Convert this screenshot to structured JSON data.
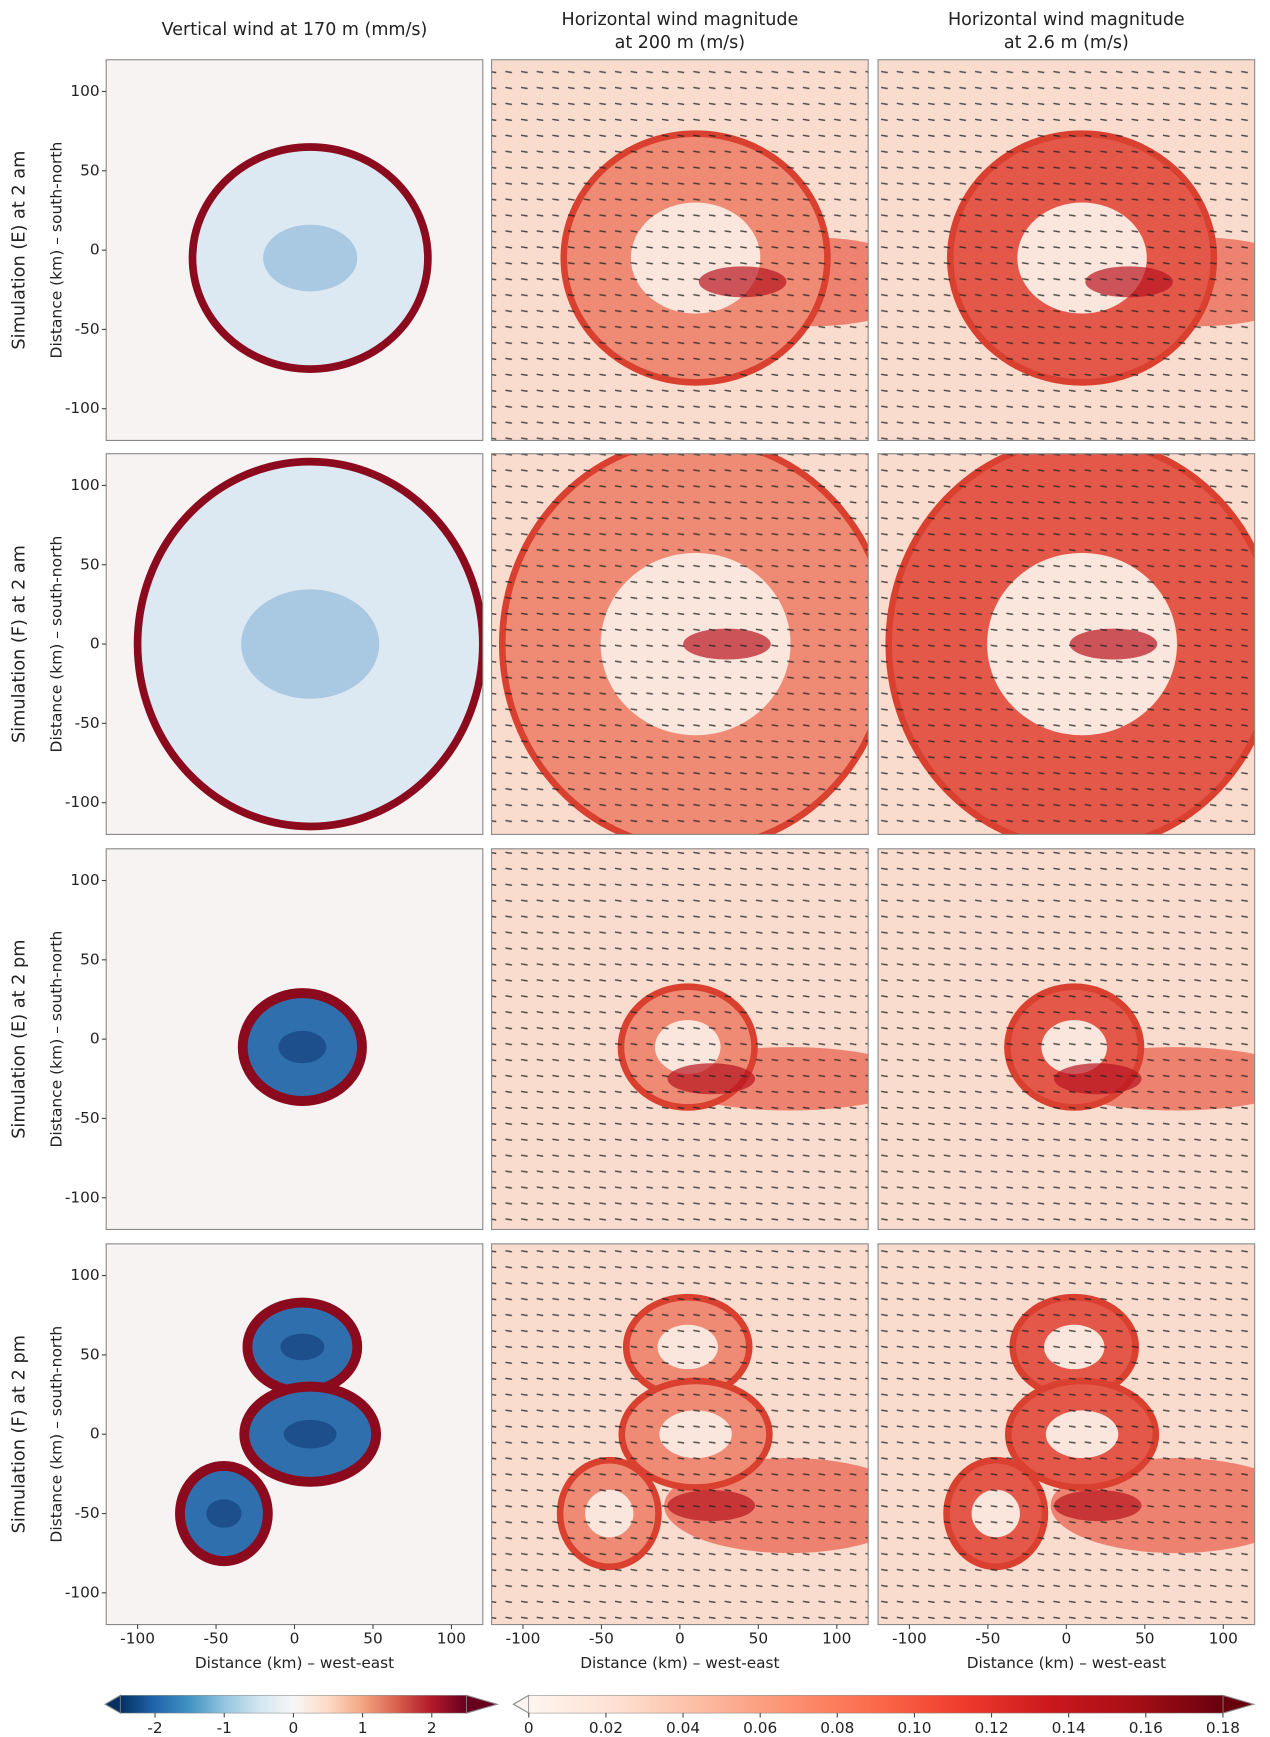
{
  "chart_data": {
    "type": "heatmap-grid",
    "column_titles": [
      [
        "Vertical wind at 170 m (mm/s)"
      ],
      [
        "Horizontal wind magnitude",
        "at 200 m (m/s)"
      ],
      [
        "Horizontal wind magnitude",
        "at 2.6 m (m/s)"
      ]
    ],
    "row_labels": [
      "Simulation (E) at 2 am",
      "Simulation (F) at 2 am",
      "Simulation (E) at 2 pm",
      "Simulation (F) at 2 pm"
    ],
    "y_label": "Distance (km) – south-north",
    "x_label": "Distance (km) – west-east",
    "xlim": [
      -120,
      120
    ],
    "ylim": [
      -120,
      120
    ],
    "xticks": [
      -100,
      -50,
      0,
      50,
      100
    ],
    "yticks": [
      -100,
      -50,
      0,
      50,
      100
    ],
    "colorbars": [
      {
        "lim": [
          -2.5,
          2.5
        ],
        "ticks": [
          -2,
          -1,
          0,
          1,
          2
        ],
        "colors": [
          "#053061",
          "#2166ac",
          "#4393c3",
          "#92c5de",
          "#d1e5f0",
          "#f7f7f7",
          "#fddbc7",
          "#f4a582",
          "#d6604d",
          "#b2182b",
          "#67001f"
        ]
      },
      {
        "lim": [
          0,
          0.18
        ],
        "ticks": [
          0,
          0.02,
          0.04,
          0.06,
          0.08,
          {
            "value": 0.1,
            "label": "0.10"
          },
          0.12,
          0.14,
          0.16,
          0.18
        ],
        "colors": [
          "#fff5f0",
          "#fee0d2",
          "#fcbba1",
          "#fc9272",
          "#fb6a4a",
          "#ef3b2c",
          "#cb181d",
          "#a50f15",
          "#67000d"
        ]
      }
    ]
  }
}
